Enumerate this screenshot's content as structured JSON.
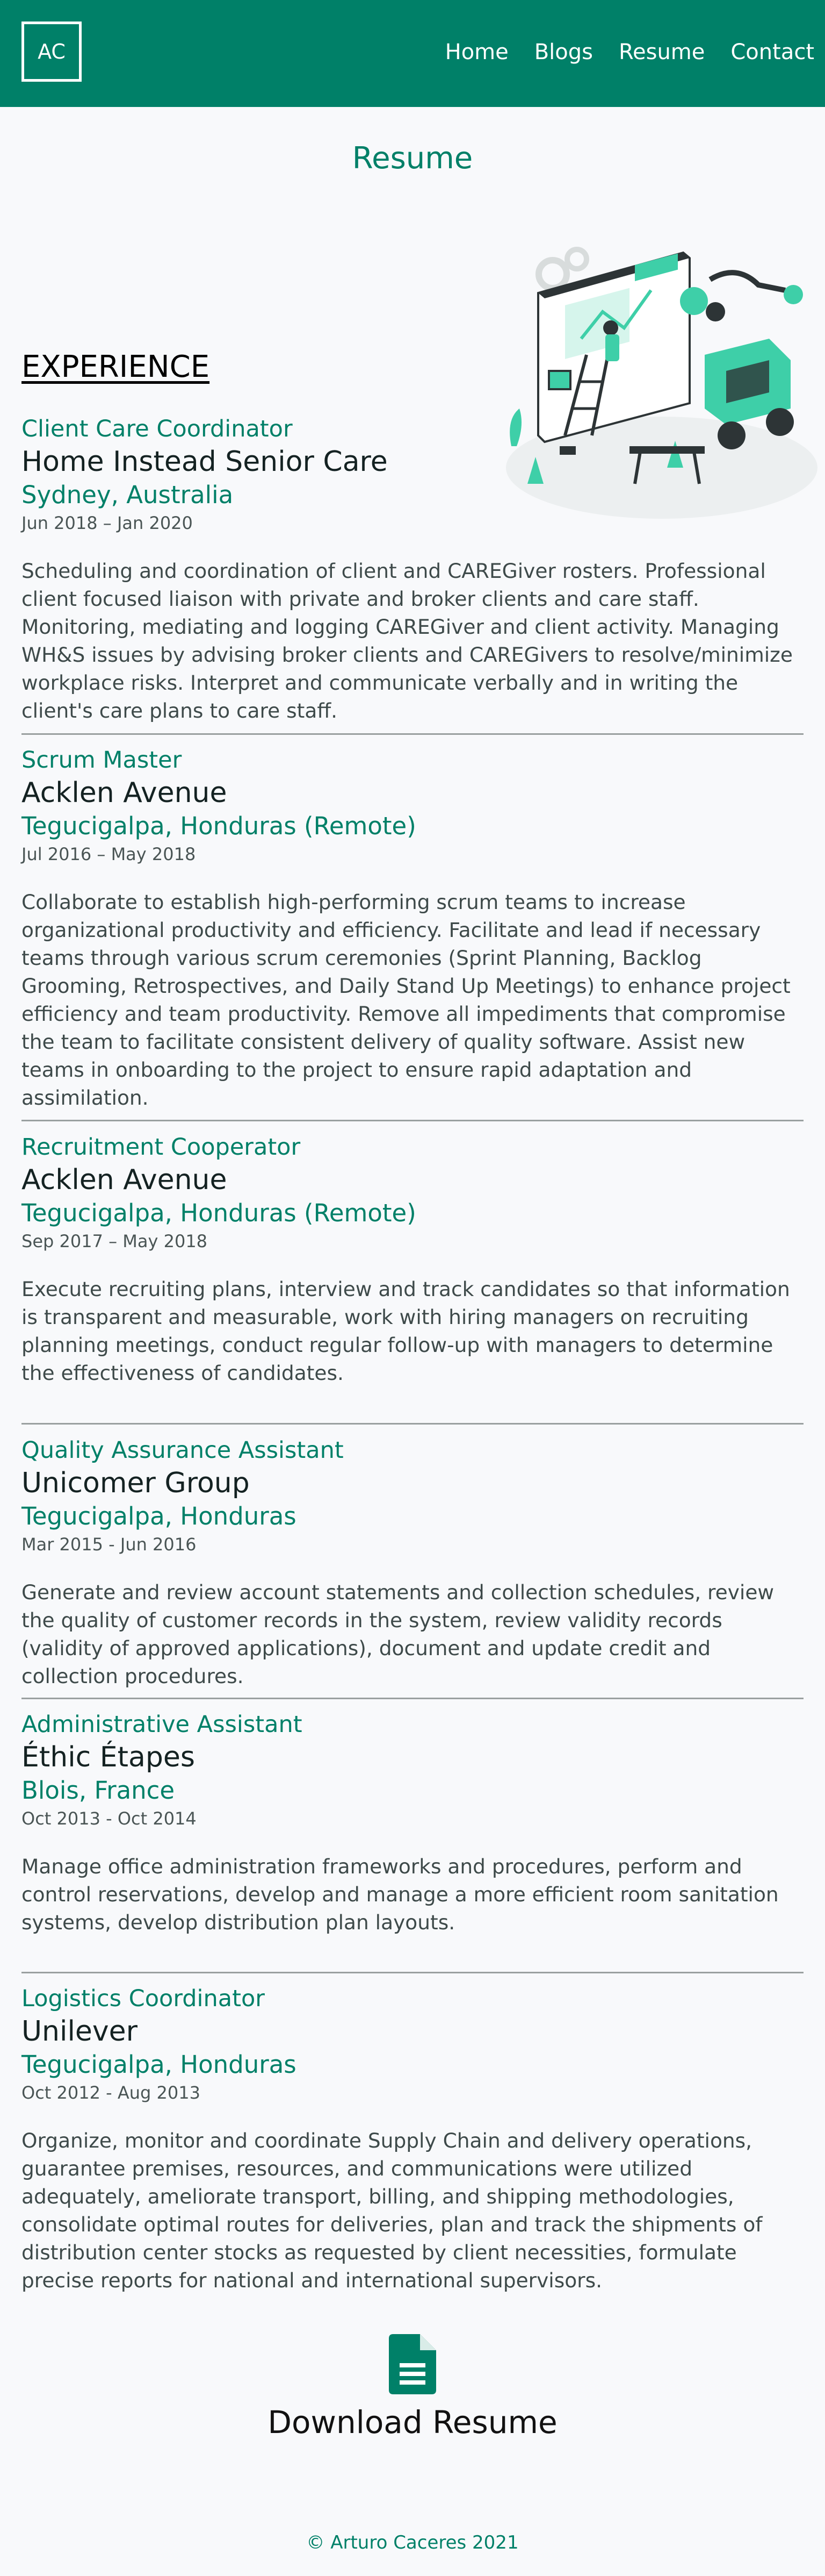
{
  "header": {
    "logo": "AC",
    "nav": [
      "Home",
      "Blogs",
      "Resume",
      "Contact"
    ]
  },
  "page_title": "Resume",
  "section_heading": "EXPERIENCE",
  "jobs": [
    {
      "role": "Client Care Coordinator",
      "company": "Home Instead Senior Care",
      "location": "Sydney, Australia",
      "dates": "Jun 2018 – Jan 2020",
      "description": "Scheduling and coordination of client and CAREGiver rosters. Professional client focused liaison with private and broker clients and care staff. Monitoring, mediating and logging CAREGiver and client activity. Managing WH&S issues by advising broker clients and CAREGivers to resolve/minimize workplace risks. Interpret and communicate verbally and in writing the client's care plans to care staff."
    },
    {
      "role": "Scrum Master",
      "company": "Acklen Avenue",
      "location": "Tegucigalpa, Honduras (Remote)",
      "dates": "Jul 2016 – May 2018",
      "description": "Collaborate to establish high-performing scrum teams to increase organizational productivity and efficiency. Facilitate and lead if necessary teams through various scrum ceremonies (Sprint Planning, Backlog Grooming, Retrospectives, and Daily Stand Up Meetings) to enhance project efficiency and team productivity. Remove all impediments that compromise the team to facilitate consistent delivery of quality software. Assist new teams in onboarding to the project to ensure rapid adaptation and assimilation."
    },
    {
      "role": "Recruitment Cooperator",
      "company": "Acklen Avenue",
      "location": "Tegucigalpa, Honduras (Remote)",
      "dates": "Sep 2017 – May 2018",
      "description": "Execute recruiting plans, interview and track candidates so that information is transparent and measurable, work with hiring managers on recruiting planning meetings, conduct regular follow-up with managers to determine the effectiveness of candidates."
    },
    {
      "role": "Quality Assurance Assistant",
      "company": "Unicomer Group",
      "location": "Tegucigalpa, Honduras",
      "dates": "Mar 2015 - Jun 2016",
      "description": "Generate and review account statements and collection schedules, review the quality of customer records in the system, review validity records (validity of approved applications), document and update credit and collection procedures."
    },
    {
      "role": "Administrative Assistant",
      "company": "Éthic Étapes",
      "location": "Blois, France",
      "dates": "Oct 2013 - Oct 2014",
      "description": "Manage office administration frameworks and procedures, perform and control reservations, develop and manage a more efficient room sanitation systems, develop distribution plan layouts."
    },
    {
      "role": "Logistics Coordinator",
      "company": "Unilever",
      "location": "Tegucigalpa, Honduras",
      "dates": "Oct 2012 - Aug 2013",
      "description": "Organize, monitor and coordinate Supply Chain and delivery operations, guarantee premises, resources, and communications were utilized adequately, ameliorate transport, billing, and shipping methodologies, consolidate optimal routes for deliveries, plan and track the shipments of distribution center stocks as requested by client necessities, formulate precise reports for national and international supervisors."
    }
  ],
  "download_label": "Download Resume",
  "footer": "© Arturo Caceres 2021",
  "icons": [
    "document-icon",
    "engineering-illustration"
  ],
  "colors": {
    "brand": "#008068",
    "background": "#f8f9fb",
    "accent_illustration": "#3ecfa8"
  }
}
